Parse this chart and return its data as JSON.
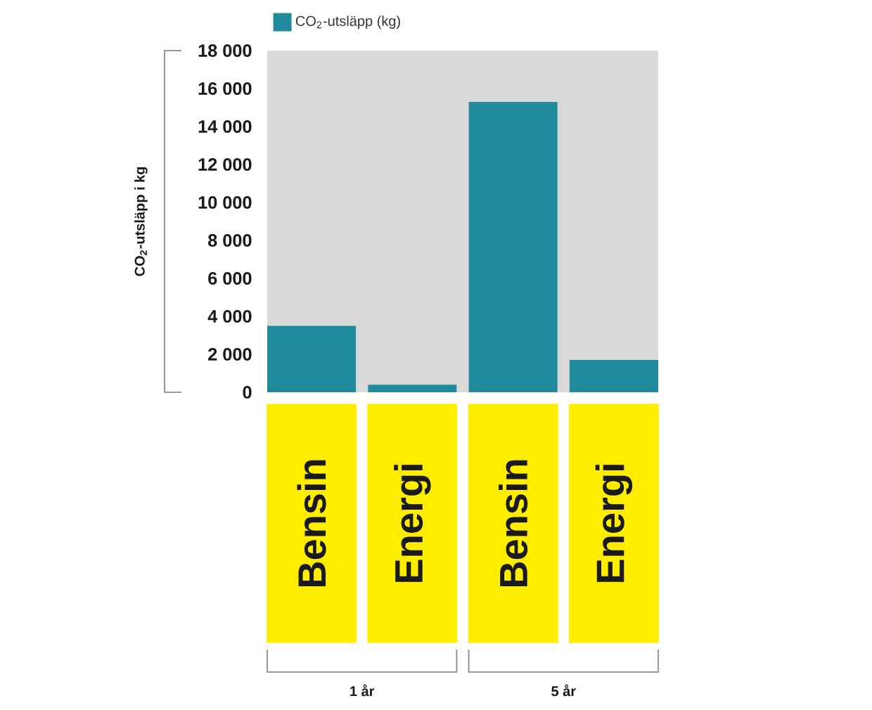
{
  "chart_data": {
    "type": "bar",
    "ylabel": "CO$_{2}$-utsläpp i kg",
    "categories": [
      "Bensin",
      "Energi",
      "Bensin",
      "Energi"
    ],
    "series": [
      {
        "name": "CO$_{2}$-utsläpp (kg)",
        "color": "#218a9c",
        "values": [
          3500,
          400,
          15300,
          1700
        ]
      }
    ],
    "ylim": [
      0,
      18000
    ],
    "yticks": [
      0,
      {
        "value": 2000,
        "label": "2 000"
      },
      {
        "value": 4000,
        "label": "4 000"
      },
      {
        "value": 6000,
        "label": "6 000"
      },
      {
        "value": 8000,
        "label": "8 000"
      },
      {
        "value": 10000,
        "label": "10 000"
      },
      {
        "value": 12000,
        "label": "12 000"
      },
      {
        "value": 14000,
        "label": "14 000"
      },
      {
        "value": 16000,
        "label": "16 000"
      },
      {
        "value": 18000,
        "label": "18 000"
      }
    ],
    "annotations": [
      "1 år",
      "5 år"
    ],
    "legend": "top"
  }
}
